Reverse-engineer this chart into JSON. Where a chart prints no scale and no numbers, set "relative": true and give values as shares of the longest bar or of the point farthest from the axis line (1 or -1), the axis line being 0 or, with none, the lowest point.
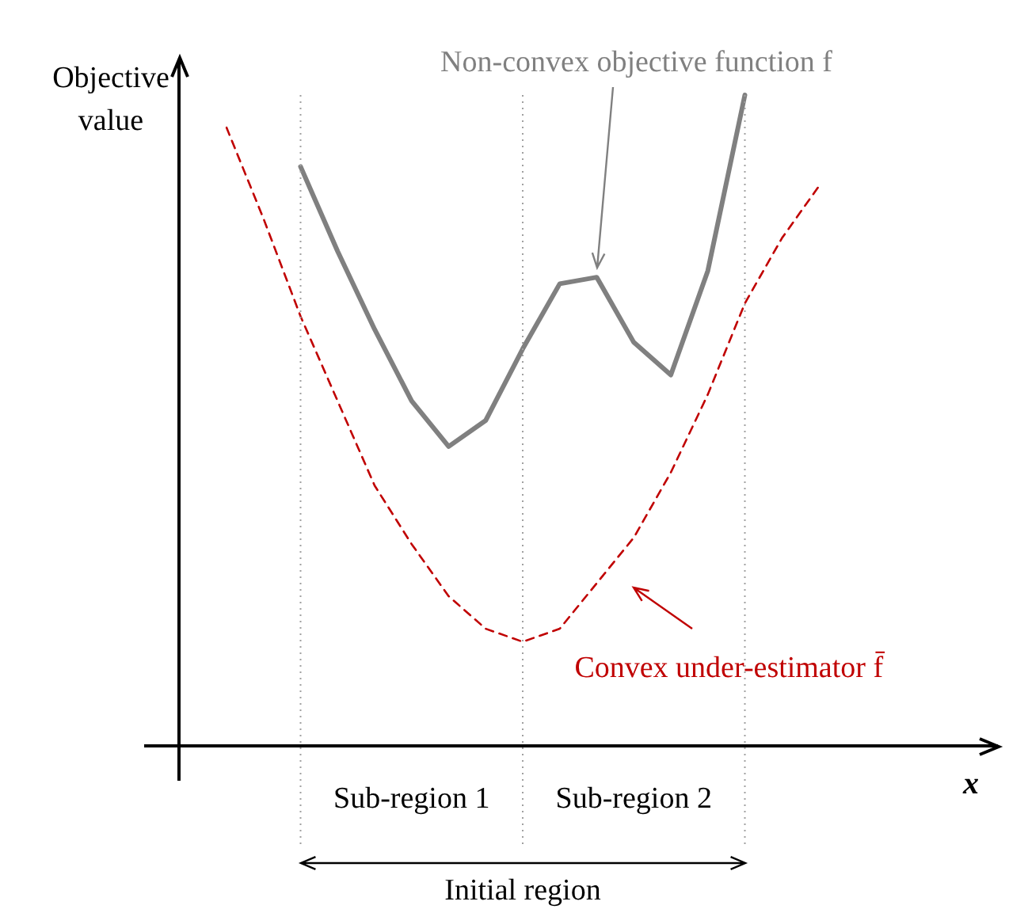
{
  "chart_data": {
    "type": "line",
    "relative": true,
    "xlabel": "x",
    "ylabel": "Objective value",
    "legend": false,
    "grid": "x",
    "categories": [
      null,
      null,
      null,
      null,
      null,
      null,
      null,
      null,
      null,
      null,
      null,
      null,
      null,
      null,
      null,
      null,
      null
    ],
    "series": [
      {
        "color": "#808080",
        "values": [
          null,
          null,
          0.89,
          0.76,
          0.64,
          0.53,
          0.46,
          0.5,
          0.61,
          0.71,
          0.72,
          0.62,
          0.57,
          0.73,
          1.0,
          null,
          null
        ]
      },
      {
        "color": "#c00000",
        "line_style": "dashed",
        "values": [
          0.95,
          0.81,
          0.66,
          0.53,
          0.4,
          0.31,
          0.23,
          0.18,
          0.16,
          0.18,
          0.25,
          0.32,
          0.42,
          0.54,
          0.68,
          0.78,
          0.86
        ]
      }
    ],
    "annotations": [
      "Non-convex objective function f",
      "Convex under-estimator f̄",
      "Sub-region 1",
      "Sub-region 2",
      "Initial region"
    ]
  }
}
